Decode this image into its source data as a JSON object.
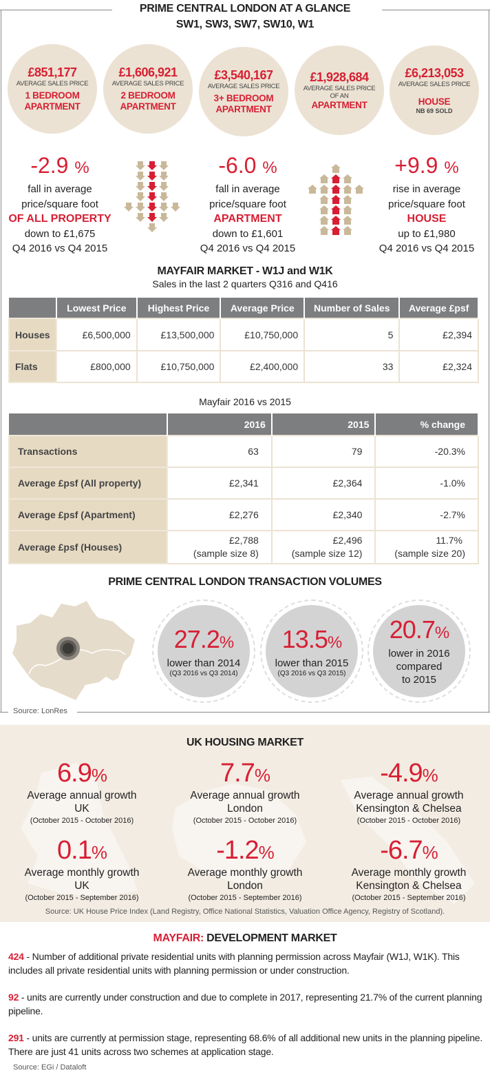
{
  "header": {
    "title": "PRIME CENTRAL LONDON AT A GLANCE",
    "subtitle": "SW1, SW3, SW7, SW10, W1"
  },
  "price_circles": [
    {
      "price": "£851,177",
      "label": "AVERAGE SALES PRICE",
      "type1": "1 BEDROOM",
      "type2": "APARTMENT"
    },
    {
      "price": "£1,606,921",
      "label": "AVERAGE SALES PRICE",
      "type1": "2 BEDROOM",
      "type2": "APARTMENT"
    },
    {
      "price": "£3,540,167",
      "label": "AVERAGE SALES PRICE",
      "type1": "3+ BEDROOM",
      "type2": "APARTMENT"
    },
    {
      "price": "£1,928,684",
      "label": "AVERAGE SALES PRICE",
      "label2": "OF AN",
      "type1": "APARTMENT"
    },
    {
      "price": "£6,213,053",
      "label": "AVERAGE SALES PRICE",
      "type1": "HOUSE",
      "note": "NB 69 SOLD"
    }
  ],
  "changes": [
    {
      "value": "-2.9",
      "unit": "%",
      "line1": "fall in average",
      "line2": "price/square foot",
      "emphasis": "OF ALL PROPERTY",
      "line3": "down to £1,675",
      "period": "Q4 2016 vs Q4 2015"
    },
    {
      "value": "-6.0",
      "unit": "%",
      "line1": "fall in average",
      "line2": "price/square foot",
      "emphasis": "APARTMENT",
      "line3": "down to £1,601",
      "period": "Q4 2016 vs Q4 2015"
    },
    {
      "value": "+9.9",
      "unit": "%",
      "line1": "rise in average",
      "line2": "price/square foot",
      "emphasis": "HOUSE",
      "line3": "up to £1,980",
      "period": "Q4 2016 vs Q4 2015"
    }
  ],
  "mayfair": {
    "title": "MAYFAIR MARKET - W1J and W1K",
    "subtitle": "Sales in the last 2 quarters Q316 and Q416",
    "columns": [
      "",
      "Lowest Price",
      "Highest Price",
      "Average Price",
      "Number of Sales",
      "Average £psf"
    ],
    "rows": [
      [
        "Houses",
        "£6,500,000",
        "£13,500,000",
        "£10,750,000",
        "5",
        "£2,394"
      ],
      [
        "Flats",
        "£800,000",
        "£10,750,000",
        "£2,400,000",
        "33",
        "£2,324"
      ]
    ]
  },
  "comparison": {
    "title": "Mayfair 2016 vs 2015",
    "columns": [
      "",
      "2016",
      "2015",
      "% change"
    ],
    "rows": [
      {
        "label": "Transactions",
        "c": [
          "63",
          "79",
          "-20.3%"
        ],
        "n": [
          "",
          "",
          ""
        ]
      },
      {
        "label": "Average £psf (All property)",
        "c": [
          "£2,341",
          "£2,364",
          "-1.0%"
        ],
        "n": [
          "",
          "",
          ""
        ]
      },
      {
        "label": "Average £psf (Apartment)",
        "c": [
          "£2,276",
          "£2,340",
          "-2.7%"
        ],
        "n": [
          "",
          "",
          ""
        ]
      },
      {
        "label": "Average £psf (Houses)",
        "c": [
          "£2,788",
          "£2,496",
          "11.7%"
        ],
        "n": [
          "(sample size 8)",
          "(sample size 12)",
          "(sample size 20)"
        ]
      }
    ]
  },
  "volumes": {
    "title": "PRIME CENTRAL LONDON TRANSACTION VOLUMES",
    "items": [
      {
        "value": "27.2",
        "unit": "%",
        "text": "lower than 2014",
        "sub": "(Q3 2016 vs Q3 2014)"
      },
      {
        "value": "13.5",
        "unit": "%",
        "text": "lower than 2015",
        "sub": "(Q3 2016 vs Q3 2015)"
      },
      {
        "value": "20.7",
        "unit": "%",
        "text": "lower in 2016",
        "text2": "compared",
        "text3": "to 2015"
      }
    ],
    "source": "Source: LonRes"
  },
  "uk": {
    "title": "UK HOUSING MARKET",
    "items": [
      {
        "value": "6.9",
        "unit": "%",
        "label": "Average annual growth",
        "area": "UK",
        "period": "(October 2015 - October 2016)"
      },
      {
        "value": "7.7",
        "unit": "%",
        "label": "Average annual growth",
        "area": "London",
        "period": "(October 2015 - October 2016)"
      },
      {
        "value": "-4.9",
        "unit": "%",
        "label": "Average annual growth",
        "area": "Kensington & Chelsea",
        "period": "(October 2015 - October 2016)"
      },
      {
        "value": "0.1",
        "unit": "%",
        "label": "Average monthly growth",
        "area": "UK",
        "period": "(October 2015 - September 2016)"
      },
      {
        "value": "-1.2",
        "unit": "%",
        "label": "Average monthly growth",
        "area": "London",
        "period": "(October 2015 - September 2016)"
      },
      {
        "value": "-6.7",
        "unit": "%",
        "label": "Average monthly growth",
        "area": "Kensington & Chelsea",
        "period": "(October 2015 - September 2016)"
      }
    ],
    "source": "Source: UK House Price Index (Land Registry, Office National Statistics, Valuation Office Agency, Registry of Scotland)."
  },
  "development": {
    "title_red": "MAYFAIR:",
    "title": " DEVELOPMENT MARKET",
    "items": [
      {
        "num": "424",
        "text": " - Number of additional private residential units with planning permission across Mayfair (W1J, W1K). This includes all private residential units with planning permission or under construction."
      },
      {
        "num": "92",
        "text": " - units are currently under construction and due to complete in 2017, representing 21.7% of the current planning pipeline."
      },
      {
        "num": "291",
        "text": " - units are currently at permission stage, representing 68.6% of all additional new units in the planning pipeline. There are just 41 units across two schemes at application stage."
      }
    ],
    "source": "Source: EGi / Dataloft"
  },
  "colors": {
    "accent": "#d71f33",
    "tan": "#e6dac3",
    "header_gray": "#7d7e80"
  }
}
